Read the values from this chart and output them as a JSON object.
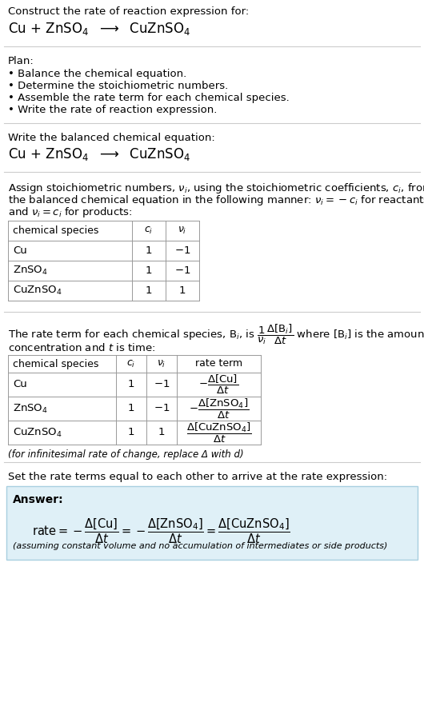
{
  "title_line1": "Construct the rate of reaction expression for:",
  "plan_header": "Plan:",
  "plan_items": [
    "• Balance the chemical equation.",
    "• Determine the stoichiometric numbers.",
    "• Assemble the rate term for each chemical species.",
    "• Write the rate of reaction expression."
  ],
  "section2_header": "Write the balanced chemical equation:",
  "table1_rows": [
    [
      "Cu",
      "1",
      "−1"
    ],
    [
      "ZnSO$_4$",
      "1",
      "−1"
    ],
    [
      "CuZnSO$_4$",
      "1",
      "1"
    ]
  ],
  "table2_rows": [
    [
      "Cu",
      "1",
      "−1"
    ],
    [
      "ZnSO$_4$",
      "1",
      "−1"
    ],
    [
      "CuZnSO$_4$",
      "1",
      "1"
    ]
  ],
  "section4_note": "(for infinitesimal rate of change, replace Δ with d)",
  "section5_header": "Set the rate terms equal to each other to arrive at the rate expression:",
  "answer_box_color": "#dff0f7",
  "answer_box_border": "#a8cfe0",
  "bg_color": "#ffffff",
  "table_border_color": "#999999",
  "separator_color": "#cccccc"
}
